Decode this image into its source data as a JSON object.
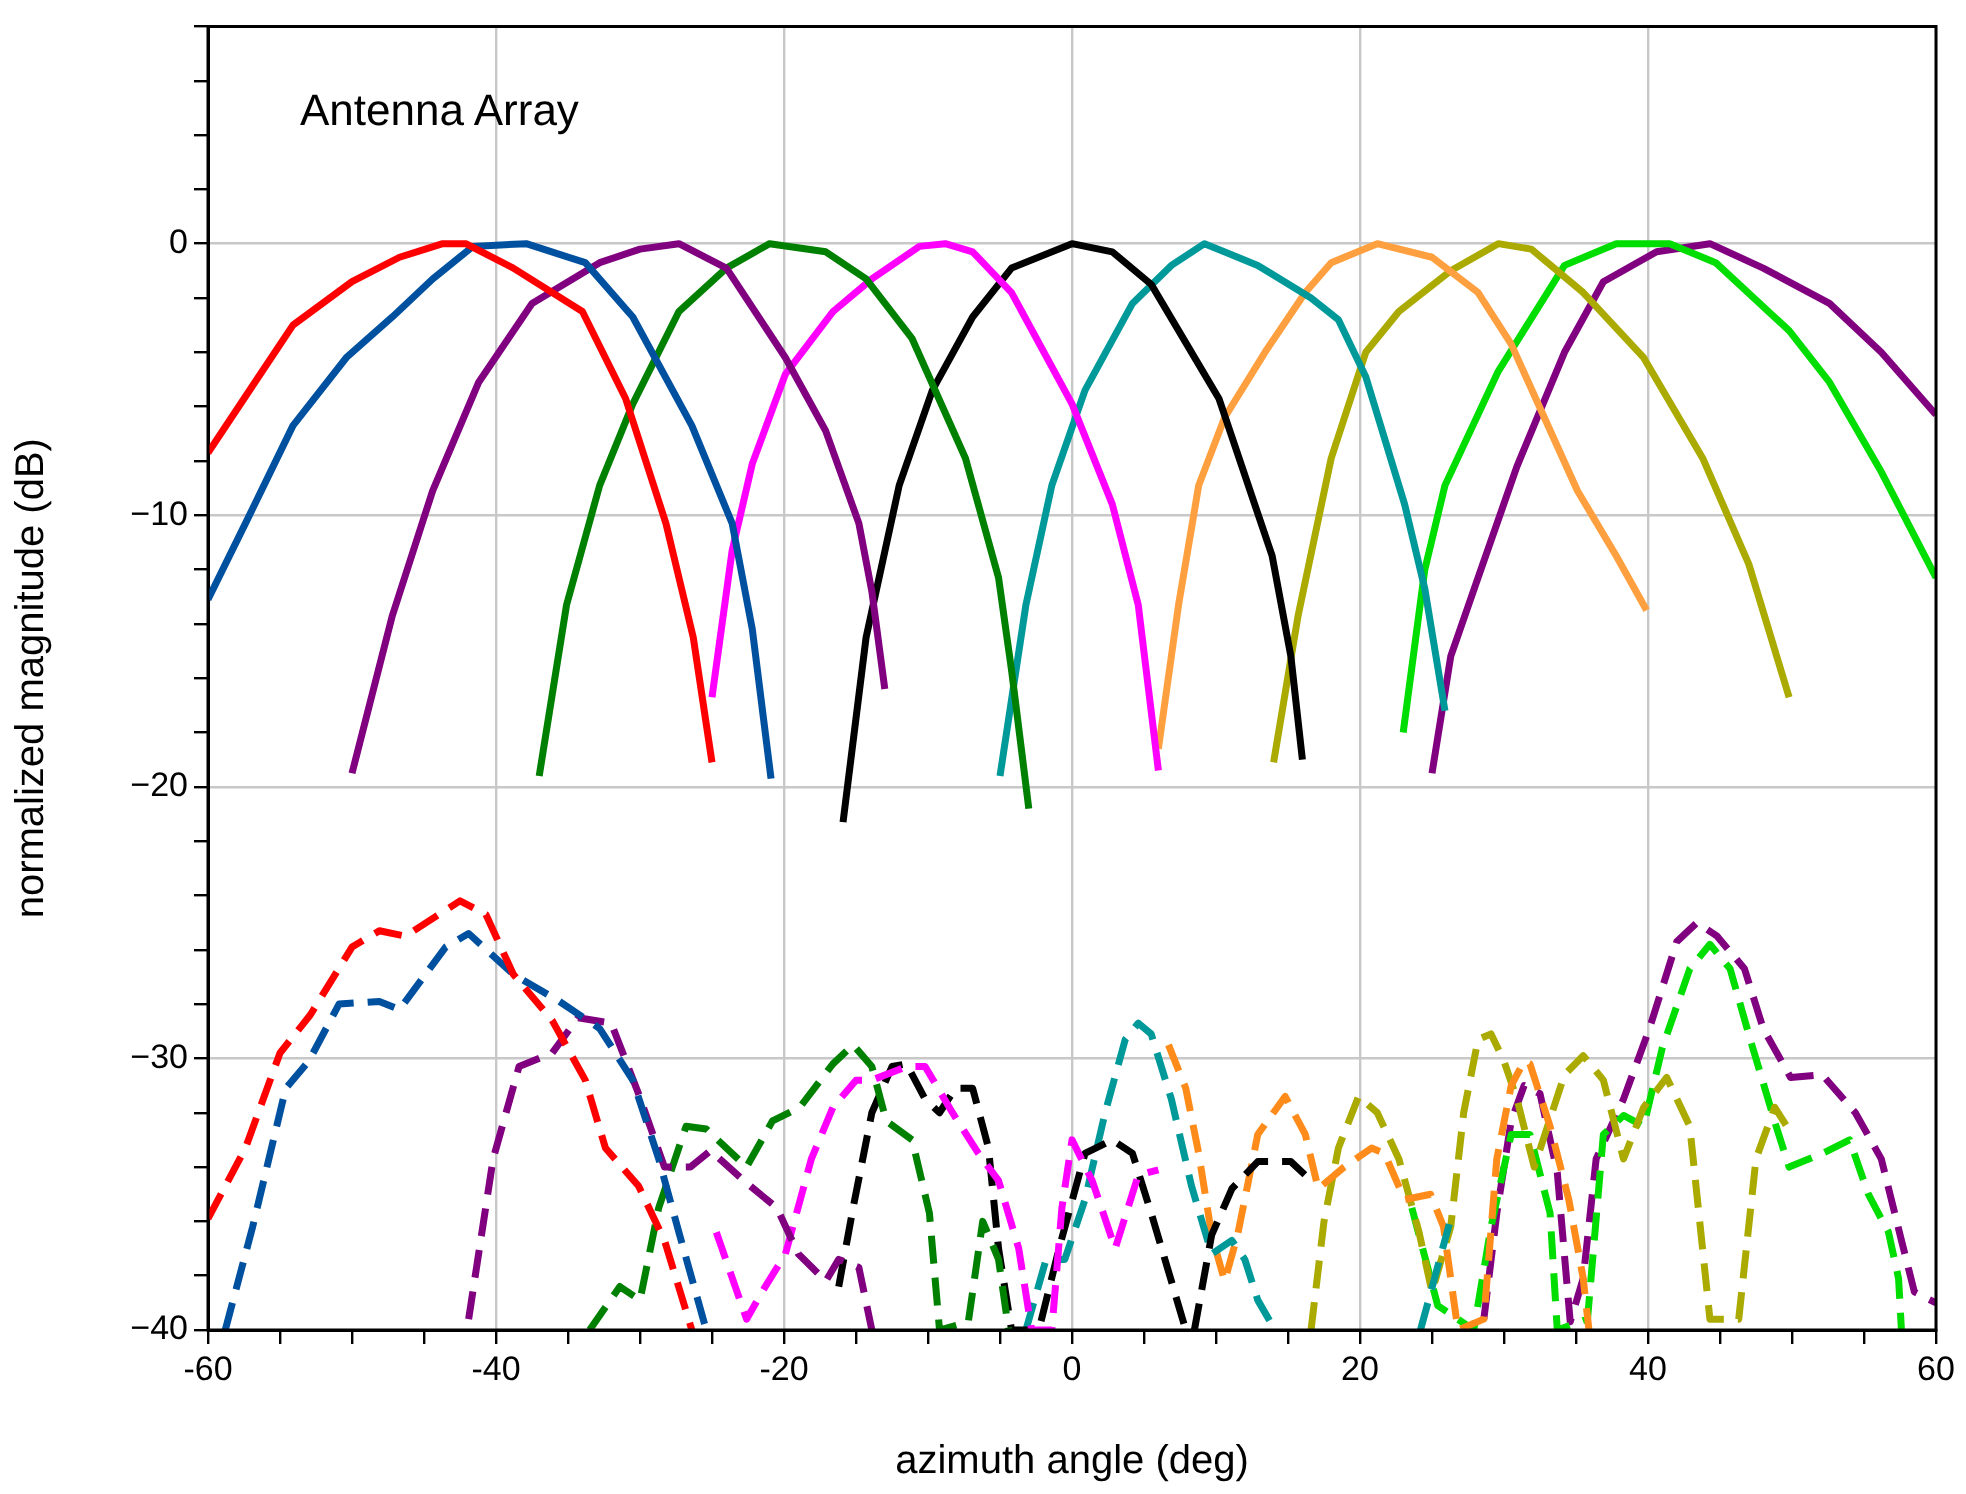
{
  "chart_data": {
    "type": "line",
    "title": "Antenna Array",
    "xlabel": "azimuth angle (deg)",
    "ylabel": "normalized magnitude (dB)",
    "xlim": [
      -60,
      60
    ],
    "ylim": [
      -40,
      8
    ],
    "xticks": [
      -60,
      {
        "value": -55,
        "label": null
      },
      {
        "value": -50,
        "label": null
      },
      {
        "value": -45,
        "label": null
      },
      -40,
      {
        "value": -35,
        "label": null
      },
      {
        "value": -30,
        "label": null
      },
      {
        "value": -25,
        "label": null
      },
      -20,
      {
        "value": -15,
        "label": null
      },
      {
        "value": -10,
        "label": null
      },
      {
        "value": -5,
        "label": null
      },
      0,
      {
        "value": 5,
        "label": null
      },
      {
        "value": 10,
        "label": null
      },
      {
        "value": 15,
        "label": null
      },
      20,
      {
        "value": 25,
        "label": null
      },
      {
        "value": 30,
        "label": null
      },
      {
        "value": 35,
        "label": null
      },
      40,
      {
        "value": 45,
        "label": null
      },
      {
        "value": 50,
        "label": null
      },
      {
        "value": 55,
        "label": null
      },
      60
    ],
    "yticks": [
      {
        "value": -40,
        "label": "−40"
      },
      {
        "value": -38,
        "label": null
      },
      {
        "value": -36,
        "label": null
      },
      {
        "value": -34,
        "label": null
      },
      {
        "value": -32,
        "label": null
      },
      {
        "value": -30,
        "label": "−30"
      },
      {
        "value": -28,
        "label": null
      },
      {
        "value": -26,
        "label": null
      },
      {
        "value": -24,
        "label": null
      },
      {
        "value": -22,
        "label": null
      },
      {
        "value": -20,
        "label": "−20"
      },
      {
        "value": -18,
        "label": null
      },
      {
        "value": -16,
        "label": null
      },
      {
        "value": -14,
        "label": null
      },
      {
        "value": -12,
        "label": null
      },
      {
        "value": -10,
        "label": "−10"
      },
      {
        "value": -8,
        "label": null
      },
      {
        "value": -6,
        "label": null
      },
      {
        "value": -4,
        "label": null
      },
      {
        "value": -2,
        "label": null
      },
      0,
      {
        "value": 2,
        "label": null
      },
      {
        "value": 4,
        "label": null
      },
      {
        "value": 6,
        "label": null
      },
      {
        "value": 8,
        "label": null
      }
    ],
    "grid": true,
    "legend": false,
    "marker": "none",
    "series": [
      {
        "color": "#ff0000",
        "line_style": "solid",
        "x": [
          -60,
          -54.1,
          -50,
          -46.7,
          -43.7,
          -42.1,
          -38.8,
          -34,
          -31,
          -28.2,
          -26.3,
          -25
        ],
        "values": [
          -7.7,
          -3,
          -1.4,
          -0.5,
          0,
          0,
          -0.9,
          -2.5,
          -5.7,
          -10.3,
          -14.5,
          -19.1
        ]
      },
      {
        "color": "#0050a0",
        "line_style": "solid",
        "x": [
          -60,
          -57.4,
          -54.1,
          -50.4,
          -47.2,
          -44.4,
          -41.6,
          -37.9,
          -33.8,
          -30.5,
          -26.4,
          -23.6,
          -22.2,
          -20.9
        ],
        "values": [
          -13.1,
          -10.3,
          -6.7,
          -4.2,
          -2.7,
          -1.3,
          -0.1,
          0,
          -0.7,
          -2.7,
          -6.7,
          -10.3,
          -14.2,
          -19.7
        ]
      },
      {
        "color": "#800080",
        "line_style": "solid",
        "x": [
          -50,
          -47.2,
          -44.4,
          -41.2,
          -37.5,
          -32.8,
          -30,
          -27.3,
          -24,
          -19.9,
          -17.1,
          -14.8,
          -13.9,
          -13
        ],
        "values": [
          -19.5,
          -13.7,
          -9.1,
          -5.1,
          -2.2,
          -0.7,
          -0.2,
          0,
          -0.9,
          -4.2,
          -6.9,
          -10.3,
          -12.8,
          -16.4
        ]
      },
      {
        "color": "#008000",
        "line_style": "solid",
        "x": [
          -37,
          -35.1,
          -32.8,
          -30.5,
          -27.3,
          -24,
          -21,
          -17.1,
          -14.3,
          -11.1,
          -7.4,
          -5.1,
          -4.2,
          -3
        ],
        "values": [
          -19.6,
          -13.3,
          -8.9,
          -5.9,
          -2.5,
          -0.9,
          0,
          -0.3,
          -1.3,
          -3.5,
          -7.9,
          -12.3,
          -15.7,
          -20.8
        ]
      },
      {
        "color": "#ff00ff",
        "line_style": "solid",
        "x": [
          -25,
          -23.6,
          -22.2,
          -19.9,
          -16.6,
          -13.9,
          -10.6,
          -8.8,
          -6.9,
          -4.2,
          0,
          2.8,
          4.6,
          6
        ],
        "values": [
          -16.7,
          -11.3,
          -8.1,
          -4.8,
          -2.5,
          -1.3,
          -0.1,
          0,
          -0.3,
          -1.8,
          -5.9,
          -9.6,
          -13.3,
          -19.4
        ]
      },
      {
        "color": "#000000",
        "line_style": "solid",
        "x": [
          -15.9,
          -14.3,
          -12,
          -9.7,
          -6.9,
          -4.2,
          0,
          2.8,
          5.5,
          10.2,
          13.9,
          15.2,
          16
        ],
        "values": [
          -21.3,
          -14.5,
          -8.9,
          -5.4,
          -2.7,
          -0.9,
          0,
          -0.3,
          -1.5,
          -5.7,
          -11.5,
          -15.2,
          -19
        ]
      },
      {
        "color": "#00999a",
        "line_style": "solid",
        "x": [
          -5,
          -3.2,
          -1.4,
          0.9,
          4.2,
          6.9,
          9.2,
          12.9,
          16.6,
          18.5,
          20.4,
          23.1,
          24.5,
          25.9
        ],
        "values": [
          -19.6,
          -13.3,
          -8.9,
          -5.4,
          -2.2,
          -0.8,
          0,
          -0.8,
          -2,
          -2.8,
          -4.9,
          -9.6,
          -12.7,
          -17.2
        ]
      },
      {
        "color": "#ffa040",
        "line_style": "solid",
        "x": [
          6,
          7.4,
          8.8,
          10.6,
          13.4,
          16.2,
          18,
          21.2,
          25,
          28.2,
          30.5,
          32.8,
          35.1,
          37.8,
          39.9
        ],
        "values": [
          -18.6,
          -13.3,
          -8.9,
          -6.4,
          -4,
          -1.8,
          -0.7,
          0,
          -0.5,
          -1.8,
          -3.7,
          -6.4,
          -9.1,
          -11.5,
          -13.5
        ]
      },
      {
        "color": "#aaaa00",
        "line_style": "solid",
        "x": [
          14,
          15.7,
          18,
          20.4,
          22.7,
          26.3,
          29.6,
          31.9,
          35.5,
          39.7,
          43.8,
          47,
          49.8
        ],
        "values": [
          -19.1,
          -13.7,
          -7.9,
          -4,
          -2.5,
          -1,
          0,
          -0.2,
          -1.8,
          -4.2,
          -7.9,
          -11.8,
          -16.7
        ]
      },
      {
        "color": "#00dd00",
        "line_style": "solid",
        "x": [
          23,
          24.5,
          25.9,
          29.6,
          34.2,
          37.8,
          41.5,
          44.7,
          49.8,
          52.6,
          56.2,
          60
        ],
        "values": [
          -18,
          -12,
          -8.9,
          -4.7,
          -0.8,
          0,
          0,
          -0.7,
          -3.2,
          -5.1,
          -8.4,
          -12.3
        ]
      },
      {
        "color": "#800080",
        "line_style": "solid",
        "x": [
          25,
          26.3,
          28.2,
          30.9,
          34.2,
          36.9,
          40.6,
          44.3,
          48,
          52.6,
          56.2,
          60
        ],
        "values": [
          -19.5,
          -15.2,
          -12.3,
          -8.2,
          -4,
          -1.4,
          -0.3,
          0,
          -0.9,
          -2.2,
          -4,
          -6.3
        ]
      },
      {
        "color": "#ff0000",
        "line_style": "dashed",
        "x": [
          -60,
          -57.4,
          -55,
          -52.9,
          -50,
          -48.1,
          -46.3,
          -42.5,
          -40.7,
          -38.8,
          -36.1,
          -33.8,
          -32.4,
          -30.1,
          -28.3,
          -26.4
        ],
        "values": [
          -35.9,
          -33.3,
          -29.8,
          -28.4,
          -25.9,
          -25.3,
          -25.5,
          -24.2,
          -24.7,
          -26.9,
          -28.6,
          -30.8,
          -33.3,
          -34.7,
          -36.7,
          -40
        ]
      },
      {
        "color": "#0050a0",
        "line_style": "dashed",
        "x": [
          -58.8,
          -56.9,
          -54.6,
          -53,
          -50.9,
          -48.1,
          -46.7,
          -43.5,
          -41.9,
          -38.8,
          -35.6,
          -32.8,
          -30.5,
          -28.7,
          -27.3,
          -25.4
        ],
        "values": [
          -40,
          -36.2,
          -31.1,
          -30.1,
          -28,
          -27.9,
          -28.2,
          -25.9,
          -25.4,
          -26.9,
          -27.9,
          -28.9,
          -30.8,
          -33.7,
          -36.4,
          -40
        ]
      },
      {
        "color": "#800080",
        "line_style": "dashed",
        "x": [
          -41.9,
          -40.2,
          -38.4,
          -36.1,
          -34.3,
          -32,
          -30.1,
          -28.3,
          -26.5,
          -25.1,
          -22.8,
          -20.5,
          -19,
          -17.1,
          -16.2,
          -14.8,
          -13.9
        ],
        "values": [
          -39.6,
          -33.7,
          -30.3,
          -29.8,
          -28.5,
          -28.7,
          -31.3,
          -34,
          -34,
          -33.4,
          -34.5,
          -35.5,
          -37.2,
          -38.2,
          -37.4,
          -37.7,
          -40
        ]
      },
      {
        "color": "#008000",
        "line_style": "dashed",
        "x": [
          -33.5,
          -31.4,
          -30,
          -28.7,
          -26.8,
          -25.4,
          -22.6,
          -20.8,
          -18.9,
          -16.6,
          -15.2,
          -13.9,
          -12.9,
          -11.1,
          -9.9,
          -9.2,
          -7.2,
          -6.2,
          -5.1,
          -4.4
        ],
        "values": [
          -40,
          -38.4,
          -38.9,
          -35.5,
          -32.5,
          -32.6,
          -34,
          -32.3,
          -31.8,
          -30.2,
          -29.5,
          -30.3,
          -32.3,
          -33,
          -35.7,
          -40,
          -39.7,
          -36,
          -37.4,
          -40
        ]
      },
      {
        "color": "#ff00ff",
        "line_style": "dashed",
        "x": [
          -24.7,
          -22.6,
          -21.3,
          -19.9,
          -18.1,
          -16.6,
          -15,
          -13.9,
          -11.5,
          -10.2,
          -8.3,
          -6.5,
          -5.1,
          -3.7,
          -2.8,
          -1.4,
          -0.7,
          0,
          1.4,
          3,
          4.6,
          6
        ],
        "values": [
          -36.4,
          -39.6,
          -38.4,
          -37.2,
          -33.7,
          -31.8,
          -30.8,
          -30.8,
          -30.3,
          -30.3,
          -32,
          -33.5,
          -34.5,
          -37,
          -40,
          -40,
          -35.5,
          -33,
          -34.5,
          -37,
          -34.3,
          -34.1
        ]
      },
      {
        "color": "#000000",
        "line_style": "dashed",
        "x": [
          -16.2,
          -15.2,
          -13.9,
          -12.5,
          -11.5,
          -10.2,
          -9.2,
          -8.1,
          -6.9,
          -5.8,
          -5.1,
          -4.2,
          -2.3,
          -0.9,
          0.9,
          2.8,
          4.2,
          5.5,
          6.9,
          7.9,
          8.5,
          9.7,
          11.1,
          12.9,
          15.2,
          16.2
        ],
        "values": [
          -38.4,
          -35.5,
          -32,
          -30.3,
          -30.2,
          -31.5,
          -32,
          -31.1,
          -31.1,
          -33.3,
          -37,
          -40,
          -40,
          -37,
          -33.5,
          -33,
          -33.5,
          -35.7,
          -38.2,
          -40,
          -40,
          -36.5,
          -34.8,
          -33.8,
          -33.8,
          -34.3
        ]
      },
      {
        "color": "#00999a",
        "line_style": "dashed",
        "x": [
          -3.2,
          -1.8,
          -0.5,
          0.9,
          2.3,
          3.7,
          4.6,
          5.5,
          6.9,
          8.3,
          9.7,
          11.1,
          12,
          12.9,
          14.1,
          null,
          24.2,
          26.2
        ],
        "values": [
          -40,
          -37.4,
          -37.4,
          -35.2,
          -32,
          -29.3,
          -28.7,
          -29.1,
          -31.5,
          -34.7,
          -37.2,
          -36.7,
          -37.4,
          -38.9,
          -40,
          null,
          -40,
          -36.1
        ]
      },
      {
        "color": "#ff8c1a",
        "line_style": "dashed",
        "x": [
          6.7,
          7.9,
          8.8,
          9.7,
          10.6,
          11.5,
          12.9,
          14.8,
          16.2,
          17.1,
          18.9,
          20.8,
          21.7,
          23.1,
          24.9,
          25.8,
          26.8,
          28.6,
          29.5,
          30.5,
          31.4,
          31.8,
          33.2,
          34.5,
          35.5,
          35.9
        ],
        "values": [
          -29.5,
          -31.1,
          -33.5,
          -36.5,
          -38.2,
          -36.5,
          -32.8,
          -31.4,
          -32.8,
          -34.8,
          -34,
          -33.3,
          -33.5,
          -35.2,
          -35,
          -36.2,
          -40,
          -39.6,
          -33.7,
          -31,
          -30.1,
          -30.2,
          -32.5,
          -35.2,
          -38.1,
          -40
        ]
      },
      {
        "color": "#aaaa00",
        "line_style": "dashed",
        "x": [
          16.6,
          17.5,
          18.5,
          19.9,
          21.2,
          22.7,
          24.1,
          25,
          26.3,
          27.2,
          28.2,
          29.1,
          30,
          30.9,
          32.1,
          34.2,
          35.5,
          36.9,
          38.3,
          39.7,
          41.3,
          42.9,
          44.3,
          46.3,
          47.5,
          48.8,
          50
        ],
        "values": [
          -40,
          -36,
          -33.3,
          -31.4,
          -32,
          -33.7,
          -36.4,
          -38.6,
          -36.2,
          -32,
          -29.3,
          -29.1,
          -30.1,
          -31.5,
          -34,
          -30.6,
          -29.9,
          -30.8,
          -33.7,
          -31.8,
          -30.7,
          -32.5,
          -39.6,
          -39.6,
          -33.7,
          -31.8,
          -32.8
        ]
      },
      {
        "color": "#00dd00",
        "line_style": "dashed",
        "x": [
          23.6,
          25.4,
          27.9,
          29.1,
          30.5,
          31.8,
          33.2,
          33.7,
          35.8,
          36.9,
          38.3,
          39.7,
          41,
          42.9,
          44.3,
          45.7,
          47.1,
          48.9,
          49.8,
          52.1,
          54,
          55.3,
          56.7,
          57.4,
          57.6
        ],
        "values": [
          -35.5,
          -39.1,
          -40,
          -36.2,
          -32.8,
          -32.8,
          -35.7,
          -40,
          -39.6,
          -32.8,
          -32.1,
          -32.5,
          -29.6,
          -26.7,
          -25.8,
          -26.7,
          -29.3,
          -32.5,
          -34,
          -33.5,
          -33,
          -35,
          -36.4,
          -38.1,
          -40
        ]
      },
      {
        "color": "#800080",
        "line_style": "dashed",
        "x": [
          28.6,
          29.5,
          30.5,
          31.4,
          32.5,
          33.7,
          34.6,
          35.5,
          36.4,
          38.3,
          40.1,
          42,
          43.4,
          44.8,
          46.7,
          48,
          49.9,
          52.1,
          54.4,
          56.2,
          57.6,
          58.5,
          60
        ],
        "values": [
          -39.6,
          -35.7,
          -32.3,
          -31,
          -31.3,
          -34.2,
          -39.7,
          -38.1,
          -33.7,
          -31.5,
          -28.9,
          -25.7,
          -25,
          -25.5,
          -26.7,
          -28.9,
          -30.7,
          -30.6,
          -32,
          -33.7,
          -36.7,
          -38.6,
          -39
        ]
      }
    ]
  }
}
